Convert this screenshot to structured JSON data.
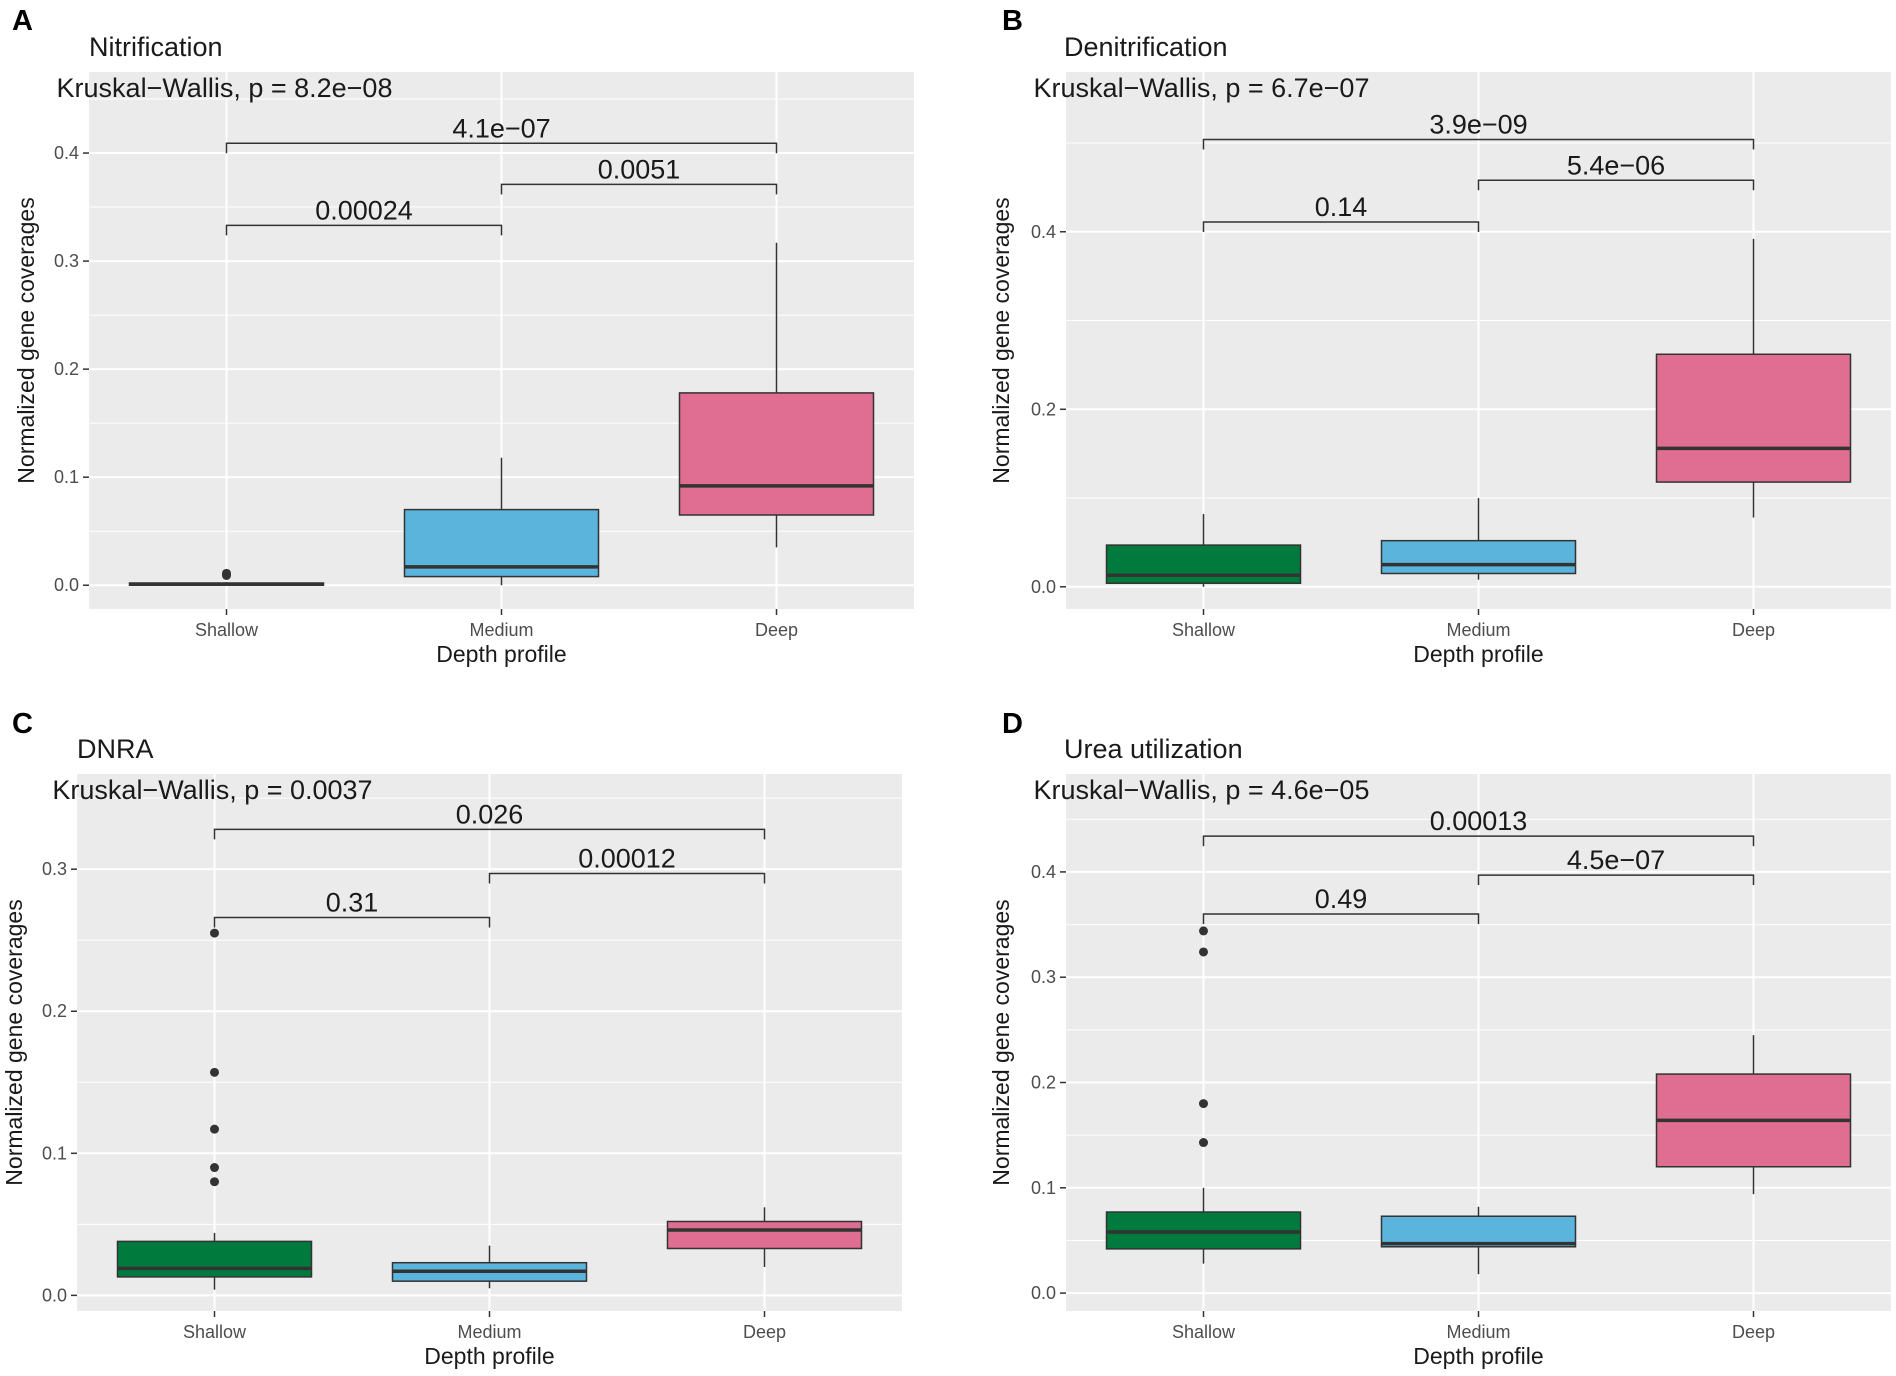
{
  "figure": {
    "background": "#ffffff",
    "panel_bg": "#ebebeb",
    "grid_color": "#ffffff"
  },
  "groups": {
    "Shallow": "#007a3d",
    "Medium": "#5bb4dc",
    "Deep": "#df6e92"
  },
  "chart_data": [
    {
      "panel_label": "A",
      "type": "box",
      "title": "Nitrification",
      "xlabel": "Depth profile",
      "ylabel": "Normalized gene coverages",
      "categories": [
        "Shallow",
        "Medium",
        "Deep"
      ],
      "ylim": [
        -0.022,
        0.475
      ],
      "yticks": [
        0.0,
        0.1,
        0.2,
        0.3,
        0.4
      ],
      "ytick_labels": [
        "0.0",
        "0.1",
        "0.2",
        "0.3",
        "0.4"
      ],
      "kruskal": "Kruskal−Wallis, p = 8.2e−08",
      "boxes": [
        {
          "category": "Shallow",
          "min": 0.0,
          "q1": 0.0,
          "median": 0.001,
          "q3": 0.002,
          "max": 0.003,
          "outliers": [
            0.009,
            0.011
          ]
        },
        {
          "category": "Medium",
          "min": 0.0,
          "q1": 0.008,
          "median": 0.017,
          "q3": 0.07,
          "max": 0.118,
          "outliers": []
        },
        {
          "category": "Deep",
          "min": 0.035,
          "q1": 0.065,
          "median": 0.092,
          "q3": 0.178,
          "max": 0.317,
          "outliers": []
        }
      ],
      "comparisons": [
        {
          "groups": [
            "Shallow",
            "Medium"
          ],
          "p": "0.00024",
          "y": 0.333
        },
        {
          "groups": [
            "Medium",
            "Deep"
          ],
          "p": "0.0051",
          "y": 0.371
        },
        {
          "groups": [
            "Shallow",
            "Deep"
          ],
          "p": "4.1e−07",
          "y": 0.409
        }
      ]
    },
    {
      "panel_label": "B",
      "type": "box",
      "title": "Denitrification",
      "xlabel": "Depth profile",
      "ylabel": "Normalized gene coverages",
      "categories": [
        "Shallow",
        "Medium",
        "Deep"
      ],
      "ylim": [
        -0.025,
        0.58
      ],
      "yticks": [
        0.0,
        0.2,
        0.4
      ],
      "ytick_labels": [
        "0.0",
        "0.2",
        "0.4"
      ],
      "kruskal": "Kruskal−Wallis, p = 6.7e−07",
      "boxes": [
        {
          "category": "Shallow",
          "min": 0.0,
          "q1": 0.004,
          "median": 0.013,
          "q3": 0.047,
          "max": 0.082,
          "outliers": []
        },
        {
          "category": "Medium",
          "min": 0.008,
          "q1": 0.015,
          "median": 0.025,
          "q3": 0.052,
          "max": 0.1,
          "outliers": []
        },
        {
          "category": "Deep",
          "min": 0.078,
          "q1": 0.118,
          "median": 0.156,
          "q3": 0.262,
          "max": 0.392,
          "outliers": []
        }
      ],
      "comparisons": [
        {
          "groups": [
            "Shallow",
            "Medium"
          ],
          "p": "0.14",
          "y": 0.411
        },
        {
          "groups": [
            "Medium",
            "Deep"
          ],
          "p": "5.4e−06",
          "y": 0.458
        },
        {
          "groups": [
            "Shallow",
            "Deep"
          ],
          "p": "3.9e−09",
          "y": 0.504
        }
      ]
    },
    {
      "panel_label": "C",
      "type": "box",
      "title": "DNRA",
      "xlabel": "Depth profile",
      "ylabel": "Normalized gene coverages",
      "categories": [
        "Shallow",
        "Medium",
        "Deep"
      ],
      "ylim": [
        -0.011,
        0.367
      ],
      "yticks": [
        0.0,
        0.1,
        0.2,
        0.3
      ],
      "ytick_labels": [
        "0.0",
        "0.1",
        "0.2",
        "0.3"
      ],
      "kruskal": "Kruskal−Wallis, p = 0.0037",
      "boxes": [
        {
          "category": "Shallow",
          "min": 0.004,
          "q1": 0.013,
          "median": 0.019,
          "q3": 0.038,
          "max": 0.044,
          "outliers": [
            0.08,
            0.09,
            0.117,
            0.157,
            0.255
          ]
        },
        {
          "category": "Medium",
          "min": 0.005,
          "q1": 0.01,
          "median": 0.017,
          "q3": 0.023,
          "max": 0.035,
          "outliers": []
        },
        {
          "category": "Deep",
          "min": 0.02,
          "q1": 0.033,
          "median": 0.046,
          "q3": 0.052,
          "max": 0.062,
          "outliers": []
        }
      ],
      "comparisons": [
        {
          "groups": [
            "Shallow",
            "Medium"
          ],
          "p": "0.31",
          "y": 0.266
        },
        {
          "groups": [
            "Medium",
            "Deep"
          ],
          "p": "0.00012",
          "y": 0.297
        },
        {
          "groups": [
            "Shallow",
            "Deep"
          ],
          "p": "0.026",
          "y": 0.328
        }
      ]
    },
    {
      "panel_label": "D",
      "type": "box",
      "title": "Urea utilization",
      "xlabel": "Depth profile",
      "ylabel": "Normalized gene coverages",
      "categories": [
        "Shallow",
        "Medium",
        "Deep"
      ],
      "ylim": [
        -0.017,
        0.493
      ],
      "yticks": [
        0.0,
        0.1,
        0.2,
        0.3,
        0.4
      ],
      "ytick_labels": [
        "0.0",
        "0.1",
        "0.2",
        "0.3",
        "0.4"
      ],
      "kruskal": "Kruskal−Wallis, p = 4.6e−05",
      "boxes": [
        {
          "category": "Shallow",
          "min": 0.028,
          "q1": 0.042,
          "median": 0.058,
          "q3": 0.077,
          "max": 0.1,
          "outliers": [
            0.143,
            0.18,
            0.324,
            0.344
          ]
        },
        {
          "category": "Medium",
          "min": 0.018,
          "q1": 0.044,
          "median": 0.047,
          "q3": 0.073,
          "max": 0.082,
          "outliers": []
        },
        {
          "category": "Deep",
          "min": 0.094,
          "q1": 0.12,
          "median": 0.164,
          "q3": 0.208,
          "max": 0.245,
          "outliers": []
        }
      ],
      "comparisons": [
        {
          "groups": [
            "Shallow",
            "Medium"
          ],
          "p": "0.49",
          "y": 0.36
        },
        {
          "groups": [
            "Medium",
            "Deep"
          ],
          "p": "4.5e−07",
          "y": 0.397
        },
        {
          "groups": [
            "Shallow",
            "Deep"
          ],
          "p": "0.00013",
          "y": 0.434
        }
      ]
    }
  ]
}
